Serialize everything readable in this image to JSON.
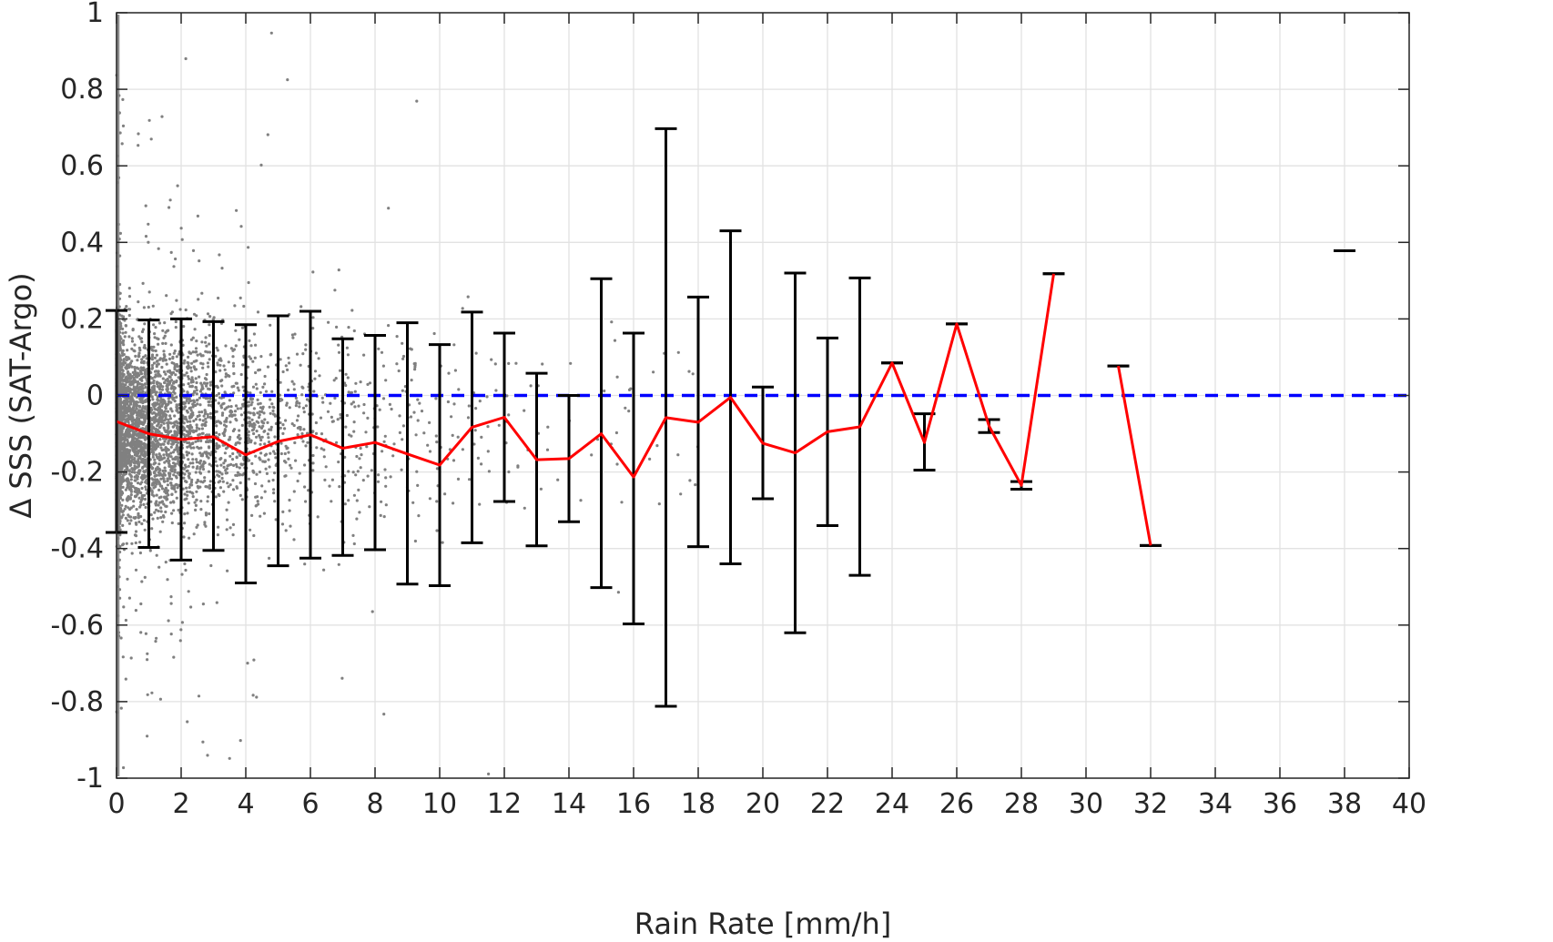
{
  "chart_data": {
    "type": "scatter",
    "xlabel": "Rain Rate [mm/h]",
    "ylabel": "Δ SSS (SAT-Argo)",
    "xlim": [
      0,
      40
    ],
    "ylim": [
      -1,
      1
    ],
    "xticks": [
      0,
      2,
      4,
      6,
      8,
      10,
      12,
      14,
      16,
      18,
      20,
      22,
      24,
      26,
      28,
      30,
      32,
      34,
      36,
      38,
      40
    ],
    "xtick_labels": [
      "0",
      "2",
      "4",
      "6",
      "8",
      "10",
      "12",
      "14",
      "16",
      "18",
      "20",
      "22",
      "24",
      "26",
      "28",
      "30",
      "32",
      "34",
      "36",
      "38",
      "40"
    ],
    "yticks": [
      -1,
      -0.8,
      -0.6,
      -0.4,
      -0.2,
      0,
      0.2,
      0.4,
      0.6,
      0.8,
      1
    ],
    "ytick_labels": [
      "-1",
      "-0.8",
      "-0.6",
      "-0.4",
      "-0.2",
      "0",
      "0.2",
      "0.4",
      "0.6",
      "0.8",
      "1"
    ],
    "grid": true,
    "colors": {
      "scatter": "#808080",
      "mean_line": "#ff0000",
      "error_bars": "#000000",
      "zero_line": "#0000ff",
      "grid": "#e2e2e2",
      "axes": "#262626"
    },
    "zero_reference": {
      "y": 0,
      "style": "dashed"
    },
    "series": [
      {
        "type": "errorbar",
        "x": [
          0,
          1,
          2,
          3,
          4,
          5,
          6,
          7,
          8,
          9,
          10,
          11,
          12,
          13,
          14,
          15,
          16,
          17,
          18,
          19,
          20,
          21,
          22,
          23,
          24,
          25,
          26,
          27,
          28,
          29,
          31,
          32,
          38
        ],
        "mean": [
          -0.068,
          -0.1,
          -0.115,
          -0.108,
          -0.155,
          -0.12,
          -0.103,
          -0.138,
          -0.123,
          -0.153,
          -0.182,
          -0.083,
          -0.057,
          -0.168,
          -0.165,
          -0.1,
          -0.213,
          -0.058,
          -0.07,
          -0.005,
          -0.125,
          -0.15,
          -0.095,
          -0.082,
          0.085,
          -0.123,
          0.187,
          -0.08,
          -0.235,
          0.318,
          0.077,
          -0.392,
          0.378
        ],
        "upper": [
          0.222,
          0.197,
          0.2,
          0.193,
          0.185,
          0.208,
          0.22,
          0.148,
          0.157,
          0.19,
          0.133,
          0.218,
          0.163,
          0.058,
          0.0,
          0.305,
          0.163,
          0.697,
          0.257,
          0.43,
          0.022,
          0.32,
          0.15,
          0.307,
          0.085,
          -0.048,
          0.187,
          -0.063,
          -0.225,
          0.318,
          0.077,
          -0.392,
          0.378
        ],
        "lower": [
          -0.358,
          -0.397,
          -0.43,
          -0.405,
          -0.49,
          -0.445,
          -0.425,
          -0.418,
          -0.403,
          -0.493,
          -0.497,
          -0.385,
          -0.277,
          -0.393,
          -0.33,
          -0.502,
          -0.597,
          -0.812,
          -0.395,
          -0.44,
          -0.27,
          -0.62,
          -0.34,
          -0.47,
          0.085,
          -0.195,
          0.187,
          -0.097,
          -0.245,
          0.318,
          0.077,
          -0.392,
          0.378
        ]
      },
      {
        "type": "line",
        "segments": [
          {
            "x": [
              0,
              1,
              2,
              3,
              4,
              5,
              6,
              7,
              8,
              9,
              10,
              11,
              12,
              13,
              14,
              15,
              16,
              17,
              18,
              19,
              20,
              21,
              22,
              23,
              24,
              25,
              26,
              27,
              28,
              29
            ],
            "y": [
              -0.068,
              -0.1,
              -0.115,
              -0.108,
              -0.155,
              -0.12,
              -0.103,
              -0.138,
              -0.123,
              -0.153,
              -0.182,
              -0.083,
              -0.057,
              -0.168,
              -0.165,
              -0.1,
              -0.213,
              -0.058,
              -0.07,
              -0.005,
              -0.125,
              -0.15,
              -0.095,
              -0.082,
              0.085,
              -0.123,
              0.187,
              -0.08,
              -0.235,
              0.318
            ]
          },
          {
            "x": [
              31,
              32
            ],
            "y": [
              0.077,
              -0.392
            ]
          }
        ]
      }
    ]
  }
}
